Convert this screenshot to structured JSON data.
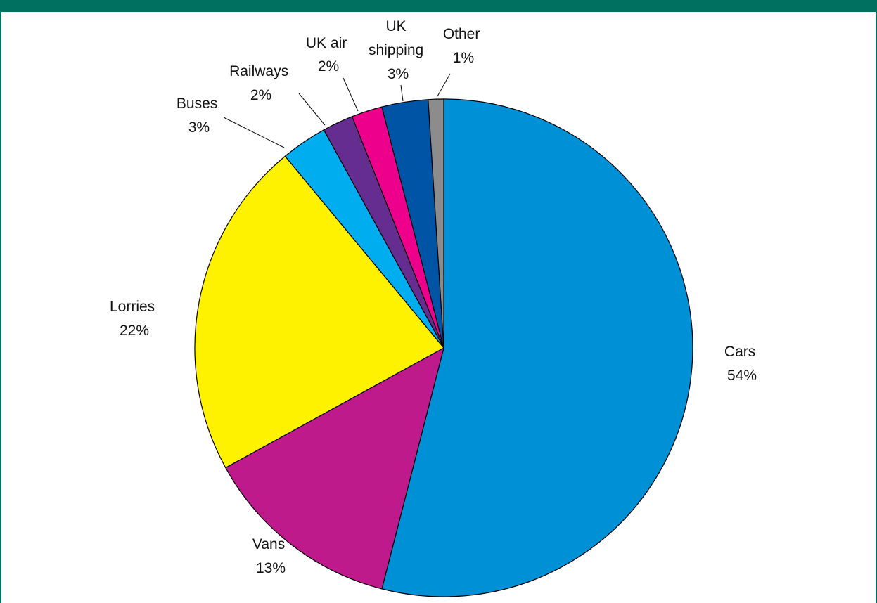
{
  "colors": {
    "frame": "#007060",
    "background": "#ffffff"
  },
  "chart_data": {
    "type": "pie",
    "start_angle_deg": 0,
    "direction": "clockwise",
    "slices": [
      {
        "label": "Cars",
        "value_label": "54%",
        "value": 54,
        "color": "#0090D6"
      },
      {
        "label": "Vans",
        "value_label": "13%",
        "value": 13,
        "color": "#BE1A8C"
      },
      {
        "label": "Lorries",
        "value_label": "22%",
        "value": 22,
        "color": "#FFF200"
      },
      {
        "label": "Buses",
        "value_label": "3%",
        "value": 3,
        "color": "#00AEEF"
      },
      {
        "label": "Railways",
        "value_label": "2%",
        "value": 2,
        "color": "#662D91"
      },
      {
        "label": "UK air",
        "value_label": "2%",
        "value": 2,
        "color": "#EC008C"
      },
      {
        "label": "UK shipping",
        "value_label": "3%",
        "value": 3,
        "color": "#0054A6"
      },
      {
        "label": "Other",
        "value_label": "1%",
        "value": 1,
        "color": "#8C8C8C"
      }
    ]
  }
}
